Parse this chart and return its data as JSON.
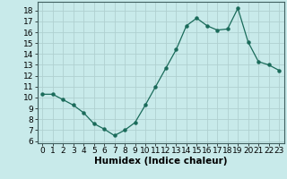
{
  "x": [
    0,
    1,
    2,
    3,
    4,
    5,
    6,
    7,
    8,
    9,
    10,
    11,
    12,
    13,
    14,
    15,
    16,
    17,
    18,
    19,
    20,
    21,
    22,
    23
  ],
  "y": [
    10.3,
    10.3,
    9.8,
    9.3,
    8.6,
    7.6,
    7.1,
    6.5,
    7.0,
    7.7,
    9.3,
    11.0,
    12.7,
    14.4,
    16.6,
    17.3,
    16.6,
    16.2,
    16.3,
    18.2,
    15.1,
    13.3,
    13.0,
    12.5
  ],
  "line_color": "#1a6b5a",
  "bg_color": "#c8eaea",
  "grid_color": "#b0d0d0",
  "xlabel": "Humidex (Indice chaleur)",
  "ylim": [
    5.8,
    18.8
  ],
  "xlim": [
    -0.5,
    23.5
  ],
  "yticks": [
    6,
    7,
    8,
    9,
    10,
    11,
    12,
    13,
    14,
    15,
    16,
    17,
    18
  ],
  "xticks": [
    0,
    1,
    2,
    3,
    4,
    5,
    6,
    7,
    8,
    9,
    10,
    11,
    12,
    13,
    14,
    15,
    16,
    17,
    18,
    19,
    20,
    21,
    22,
    23
  ],
  "xlabel_fontsize": 7.5,
  "tick_fontsize": 6.5
}
